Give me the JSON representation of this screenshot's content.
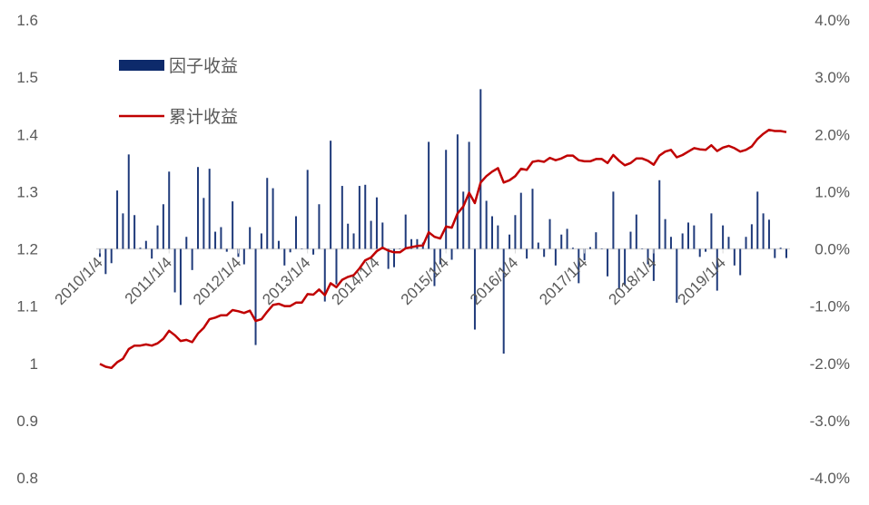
{
  "chart_data": {
    "type": "bar+line",
    "legend": {
      "placement": "top-left",
      "entries": [
        "因子收益",
        "累计收益"
      ]
    },
    "colors": {
      "factor_return": "#1f3a7a",
      "legend_bar": "#0d2a6b",
      "cumulative": "#c00000",
      "axis": "#d9d9d9",
      "text": "#595959"
    },
    "left_axis": {
      "ylim": [
        0.8,
        1.6
      ],
      "ticks": [
        "0.8",
        "0.9",
        "1",
        "1.1",
        "1.2",
        "1.3",
        "1.4",
        "1.5",
        "1.6"
      ]
    },
    "right_axis": {
      "ylim": [
        -4,
        4
      ],
      "unit": "%",
      "ticks": [
        "-4.0%",
        "-3.0%",
        "-2.0%",
        "-1.0%",
        "0.0%",
        "1.0%",
        "2.0%",
        "3.0%",
        "4.0%"
      ]
    },
    "x_tick_labels": [
      "2010/1/4",
      "2011/1/4",
      "2012/1/4",
      "2013/1/4",
      "2014/1/4",
      "2015/1/4",
      "2016/1/4",
      "2017/1/4",
      "2018/1/4",
      "2019/1/4"
    ],
    "x_start": "2010/1",
    "x_end": "2019/12",
    "frequency": "monthly",
    "series": [
      {
        "name": "因子收益",
        "axis": "right",
        "kind": "bar",
        "values": [
          -0.14,
          -0.44,
          -0.25,
          1.02,
          0.62,
          1.65,
          0.59,
          0.02,
          0.14,
          -0.17,
          0.41,
          0.78,
          1.35,
          -0.76,
          -0.98,
          0.21,
          -0.37,
          1.43,
          0.89,
          1.4,
          0.3,
          0.38,
          -0.05,
          0.83,
          -0.14,
          -0.27,
          0.38,
          -1.68,
          0.27,
          1.24,
          1.06,
          0.14,
          -0.29,
          -0.06,
          0.57,
          0,
          1.38,
          -0.1,
          0.78,
          -0.92,
          1.89,
          -0.62,
          1.1,
          0.44,
          0.27,
          1.1,
          1.12,
          0.49,
          0.9,
          0.46,
          -0.35,
          -0.32,
          0,
          0.6,
          0.17,
          0.17,
          0.11,
          1.87,
          -0.65,
          -0.27,
          1.73,
          -0.19,
          2.0,
          1.0,
          1.87,
          -1.41,
          2.79,
          0.84,
          0.57,
          0.41,
          -1.83,
          0.25,
          0.59,
          0.98,
          -0.17,
          1.05,
          0.11,
          -0.14,
          0.52,
          -0.29,
          0.25,
          0.35,
          0.02,
          -0.6,
          -0.2,
          0.03,
          0.29,
          0,
          -0.48,
          1.0,
          -0.71,
          -0.64,
          0.3,
          0.6,
          0,
          -0.27,
          -0.56,
          1.2,
          0.52,
          0.21,
          -0.94,
          0.27,
          0.46,
          0.41,
          -0.14,
          -0.05,
          0.62,
          -0.73,
          0.41,
          0.21,
          -0.29,
          -0.46,
          0.21,
          0.43,
          1.0,
          0.62,
          0.51,
          -0.16,
          0.02,
          -0.16
        ]
      },
      {
        "name": "累计收益",
        "axis": "left",
        "kind": "line",
        "values": [
          0.999,
          0.994,
          0.992,
          1.002,
          1.008,
          1.025,
          1.031,
          1.031,
          1.033,
          1.031,
          1.035,
          1.043,
          1.057,
          1.049,
          1.039,
          1.041,
          1.037,
          1.052,
          1.062,
          1.077,
          1.08,
          1.084,
          1.084,
          1.093,
          1.091,
          1.088,
          1.092,
          1.074,
          1.077,
          1.09,
          1.102,
          1.104,
          1.1,
          1.1,
          1.106,
          1.106,
          1.121,
          1.12,
          1.129,
          1.119,
          1.14,
          1.133,
          1.146,
          1.151,
          1.154,
          1.166,
          1.18,
          1.185,
          1.196,
          1.202,
          1.197,
          1.194,
          1.194,
          1.201,
          1.203,
          1.205,
          1.206,
          1.229,
          1.221,
          1.218,
          1.239,
          1.237,
          1.262,
          1.274,
          1.298,
          1.28,
          1.316,
          1.327,
          1.335,
          1.341,
          1.316,
          1.32,
          1.327,
          1.34,
          1.338,
          1.352,
          1.354,
          1.352,
          1.359,
          1.355,
          1.358,
          1.363,
          1.363,
          1.355,
          1.353,
          1.353,
          1.357,
          1.357,
          1.35,
          1.364,
          1.354,
          1.346,
          1.35,
          1.358,
          1.358,
          1.354,
          1.347,
          1.363,
          1.37,
          1.373,
          1.36,
          1.364,
          1.37,
          1.376,
          1.374,
          1.373,
          1.381,
          1.371,
          1.377,
          1.38,
          1.376,
          1.37,
          1.373,
          1.379,
          1.392,
          1.401,
          1.408,
          1.406,
          1.406,
          1.404
        ]
      }
    ],
    "grid": false
  }
}
